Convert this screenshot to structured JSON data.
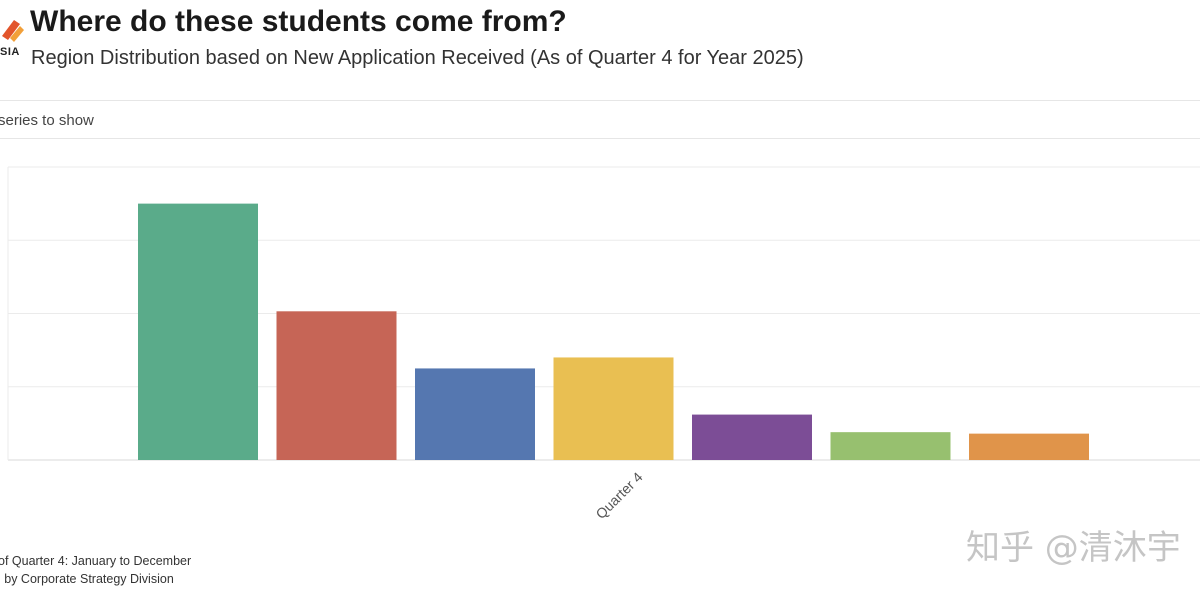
{
  "header": {
    "logo_text": "SIA",
    "title": "Where do these students come from?",
    "subtitle": "Region Distribution based on New Application Received (As of Quarter 4 for Year 2025)"
  },
  "controls": {
    "series_label": "series to show"
  },
  "footnotes": {
    "line1": "of Quarter 4: January to December",
    "line2": "l by Corporate Strategy Division"
  },
  "watermark": "知乎 @清沐宇",
  "colors": {
    "grid": "#ebebeb",
    "series": [
      "#5aab8a",
      "#c66556",
      "#5577b0",
      "#e9bf52",
      "#7c4d96",
      "#97c06f",
      "#e0944a"
    ]
  },
  "chart_data": {
    "type": "bar",
    "categories": [
      "Quarter 4"
    ],
    "series": [
      {
        "values": [
          350
        ]
      },
      {
        "values": [
          203
        ]
      },
      {
        "values": [
          125
        ]
      },
      {
        "values": [
          140
        ]
      },
      {
        "values": [
          62
        ]
      },
      {
        "values": [
          38
        ]
      },
      {
        "values": [
          36
        ]
      }
    ],
    "ylim": [
      0,
      400
    ],
    "grid": true,
    "legend": "none"
  }
}
